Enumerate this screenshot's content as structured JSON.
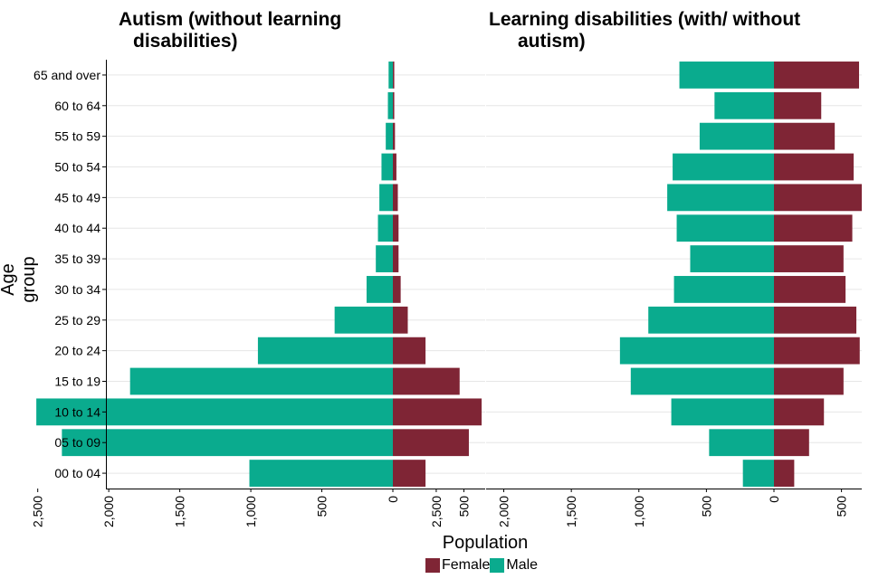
{
  "chart_data": {
    "type": "bar",
    "orientation": "horizontal",
    "style": "population-pyramid",
    "xlabel": "Population",
    "ylabel": "Age group",
    "categories": [
      "65 and over",
      "60 to 64",
      "55 to 59",
      "50 to 54",
      "45 to 49",
      "40 to 44",
      "35 to 39",
      "30 to 34",
      "25 to 29",
      "20 to 24",
      "15 to 19",
      "10 to 14",
      "05 to 09",
      "00 to 04"
    ],
    "xticks": [
      -2500,
      -2000,
      -1500,
      -1000,
      -500,
      0,
      500
    ],
    "xtick_labels": [
      "2,500",
      "2,000",
      "1,500",
      "1,000",
      "500",
      "0",
      "500"
    ],
    "xlim": [
      -2650,
      650
    ],
    "legend": [
      {
        "name": "Female",
        "color": "#7f2535"
      },
      {
        "name": "Male",
        "color": "#0aab8e"
      }
    ],
    "panels": [
      {
        "title_lines": [
          "Autism (without learning",
          "disabilities)"
        ],
        "series": [
          {
            "name": "Male",
            "values": [
              -30,
              -35,
              -50,
              -80,
              -95,
              -105,
              -120,
              -185,
              -410,
              -950,
              -1850,
              -2510,
              -2330,
              -1010
            ]
          },
          {
            "name": "Female",
            "values": [
              10,
              10,
              15,
              25,
              35,
              40,
              40,
              55,
              105,
              230,
              470,
              625,
              535,
              230
            ]
          }
        ]
      },
      {
        "title_lines": [
          "Learning disabilities (with/ without",
          "autism)"
        ],
        "series": [
          {
            "name": "Male",
            "values": [
              -700,
              -440,
              -550,
              -750,
              -790,
              -720,
              -620,
              -740,
              -930,
              -1140,
              -1060,
              -760,
              -480,
              -230
            ]
          },
          {
            "name": "Female",
            "values": [
              630,
              350,
              450,
              590,
              650,
              580,
              515,
              530,
              610,
              635,
              515,
              370,
              260,
              150
            ]
          }
        ]
      }
    ]
  }
}
